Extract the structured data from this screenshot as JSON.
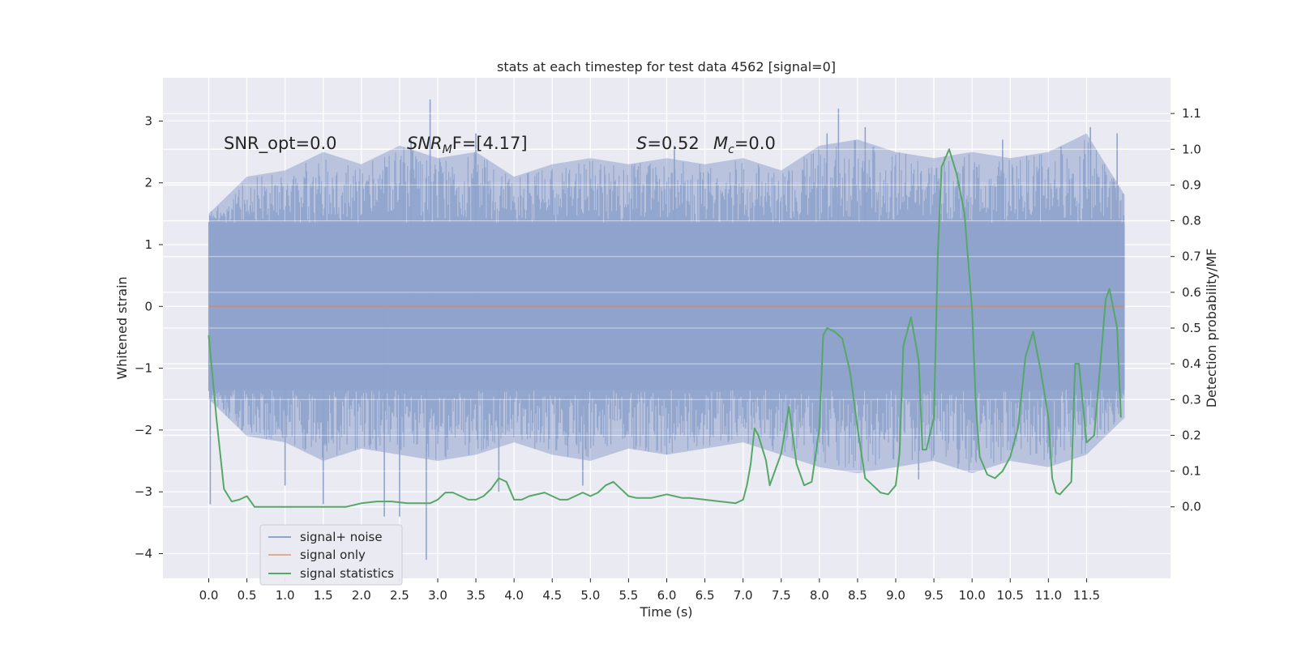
{
  "chart_data": {
    "type": "line",
    "title": "stats at each timestep for test data 4562 [signal=0]",
    "xlabel": "Time (s)",
    "ylabel_left": "Whitened strain",
    "ylabel_right": "Detection probability/MF",
    "xlim": [
      -0.6,
      12.6
    ],
    "ylim_left": [
      -4.4,
      3.7
    ],
    "ylim_right": [
      -0.2,
      1.2
    ],
    "x_ticks": [
      "0.0",
      "0.5",
      "1.0",
      "1.5",
      "2.0",
      "2.5",
      "3.0",
      "3.5",
      "4.0",
      "4.5",
      "5.0",
      "5.5",
      "6.0",
      "6.5",
      "7.0",
      "7.5",
      "8.0",
      "8.5",
      "9.0",
      "9.5",
      "10.0",
      "10.5",
      "11.0",
      "11.5"
    ],
    "y_ticks_left": [
      -4,
      -3,
      -2,
      -1,
      0,
      1,
      2,
      3
    ],
    "y_tick_labels_left": [
      "−4",
      "−3",
      "−2",
      "−1",
      "0",
      "1",
      "2",
      "3"
    ],
    "y_ticks_right": [
      "0.0",
      "0.1",
      "0.2",
      "0.3",
      "0.4",
      "0.5",
      "0.6",
      "0.7",
      "0.8",
      "0.9",
      "1.0",
      "1.1"
    ],
    "grid": true,
    "legend_position": "lower-left",
    "colors": {
      "background": "#eaeaf2",
      "noise": "#8fa3cc",
      "signal_only": "#dd8452",
      "statistics": "#55a868",
      "grid": "#ffffff"
    },
    "annotations": {
      "snr_opt": "SNR_opt=0.0",
      "snr_mf_base": "SNR",
      "snr_mf_sub": "M",
      "snr_mf_tail": "F=[4.17]",
      "s_label": "S",
      "s_value": "=0.52",
      "mc_label": "M",
      "mc_sub": "c",
      "mc_value": "=0.0"
    },
    "series": [
      {
        "name": "signal+ noise",
        "axis": "left",
        "envelope_x": [
          0.0,
          0.5,
          1.0,
          1.5,
          2.0,
          2.5,
          3.0,
          3.5,
          4.0,
          4.5,
          5.0,
          5.5,
          6.0,
          6.5,
          7.0,
          7.5,
          8.0,
          8.5,
          9.0,
          9.5,
          10.0,
          10.5,
          11.0,
          11.5,
          12.0
        ],
        "envelope_upper": [
          1.5,
          2.1,
          2.2,
          2.5,
          2.3,
          2.6,
          2.4,
          2.5,
          2.1,
          2.3,
          2.4,
          2.3,
          2.4,
          2.3,
          2.4,
          2.2,
          2.6,
          2.7,
          2.5,
          2.4,
          2.5,
          2.4,
          2.5,
          2.8,
          1.8
        ],
        "envelope_lower": [
          -1.5,
          -2.1,
          -2.2,
          -2.5,
          -2.3,
          -2.4,
          -2.5,
          -2.4,
          -2.2,
          -2.4,
          -2.5,
          -2.3,
          -2.4,
          -2.3,
          -2.2,
          -2.4,
          -2.6,
          -2.7,
          -2.6,
          -2.5,
          -2.7,
          -2.5,
          -2.6,
          -2.4,
          -1.8
        ],
        "spikes": [
          {
            "x": 0.02,
            "y": -3.2
          },
          {
            "x": 1.0,
            "y": -2.9
          },
          {
            "x": 1.5,
            "y": -3.2
          },
          {
            "x": 2.3,
            "y": -3.4
          },
          {
            "x": 2.5,
            "y": -3.4
          },
          {
            "x": 2.65,
            "y": 2.7
          },
          {
            "x": 2.85,
            "y": -4.1
          },
          {
            "x": 2.9,
            "y": 3.35
          },
          {
            "x": 3.5,
            "y": 2.8
          },
          {
            "x": 3.8,
            "y": -3.0
          },
          {
            "x": 4.9,
            "y": -2.9
          },
          {
            "x": 6.1,
            "y": 2.6
          },
          {
            "x": 8.1,
            "y": 2.8
          },
          {
            "x": 8.25,
            "y": 3.2
          },
          {
            "x": 8.6,
            "y": 2.9
          },
          {
            "x": 9.3,
            "y": -2.8
          },
          {
            "x": 10.4,
            "y": 2.7
          },
          {
            "x": 11.55,
            "y": 2.9
          },
          {
            "x": 11.9,
            "y": 2.8
          }
        ]
      },
      {
        "name": "signal only",
        "axis": "left",
        "x": [
          0.0,
          12.0
        ],
        "y": [
          0.0,
          0.0
        ]
      },
      {
        "name": "signal statistics",
        "axis": "right",
        "x": [
          0.0,
          0.1,
          0.2,
          0.3,
          0.4,
          0.5,
          0.6,
          0.8,
          1.0,
          1.2,
          1.4,
          1.6,
          1.8,
          2.0,
          2.2,
          2.4,
          2.6,
          2.8,
          2.9,
          3.0,
          3.1,
          3.2,
          3.3,
          3.4,
          3.5,
          3.6,
          3.7,
          3.8,
          3.9,
          4.0,
          4.1,
          4.2,
          4.4,
          4.6,
          4.7,
          4.8,
          4.9,
          5.0,
          5.1,
          5.2,
          5.3,
          5.4,
          5.5,
          5.6,
          5.8,
          5.9,
          6.0,
          6.1,
          6.2,
          6.3,
          6.5,
          6.7,
          6.9,
          7.0,
          7.05,
          7.1,
          7.15,
          7.2,
          7.3,
          7.35,
          7.4,
          7.5,
          7.6,
          7.7,
          7.8,
          7.9,
          8.0,
          8.05,
          8.1,
          8.2,
          8.3,
          8.4,
          8.5,
          8.6,
          8.7,
          8.8,
          8.9,
          9.0,
          9.05,
          9.1,
          9.2,
          9.3,
          9.35,
          9.4,
          9.5,
          9.55,
          9.6,
          9.7,
          9.8,
          9.9,
          10.0,
          10.05,
          10.1,
          10.2,
          10.3,
          10.4,
          10.5,
          10.6,
          10.7,
          10.8,
          10.9,
          11.0,
          11.05,
          11.1,
          11.15,
          11.3,
          11.35,
          11.4,
          11.5,
          11.6,
          11.7,
          11.75,
          11.8,
          11.9,
          11.95
        ],
        "y": [
          0.48,
          0.25,
          0.05,
          0.015,
          0.02,
          0.03,
          0.0,
          0.0,
          0.0,
          0.0,
          0.0,
          0.0,
          0.0,
          0.01,
          0.015,
          0.015,
          0.01,
          0.01,
          0.01,
          0.02,
          0.04,
          0.04,
          0.03,
          0.02,
          0.02,
          0.03,
          0.05,
          0.08,
          0.07,
          0.02,
          0.02,
          0.03,
          0.04,
          0.02,
          0.02,
          0.03,
          0.04,
          0.03,
          0.04,
          0.06,
          0.07,
          0.05,
          0.03,
          0.025,
          0.025,
          0.03,
          0.035,
          0.03,
          0.025,
          0.025,
          0.02,
          0.015,
          0.01,
          0.02,
          0.06,
          0.12,
          0.22,
          0.2,
          0.13,
          0.06,
          0.09,
          0.15,
          0.28,
          0.12,
          0.06,
          0.07,
          0.22,
          0.48,
          0.5,
          0.49,
          0.47,
          0.38,
          0.22,
          0.08,
          0.06,
          0.04,
          0.035,
          0.06,
          0.15,
          0.45,
          0.53,
          0.41,
          0.16,
          0.16,
          0.25,
          0.7,
          0.95,
          1.0,
          0.93,
          0.82,
          0.55,
          0.28,
          0.14,
          0.09,
          0.08,
          0.1,
          0.14,
          0.22,
          0.42,
          0.49,
          0.38,
          0.25,
          0.08,
          0.04,
          0.035,
          0.07,
          0.4,
          0.4,
          0.18,
          0.2,
          0.45,
          0.58,
          0.61,
          0.5,
          0.25
        ]
      }
    ]
  }
}
